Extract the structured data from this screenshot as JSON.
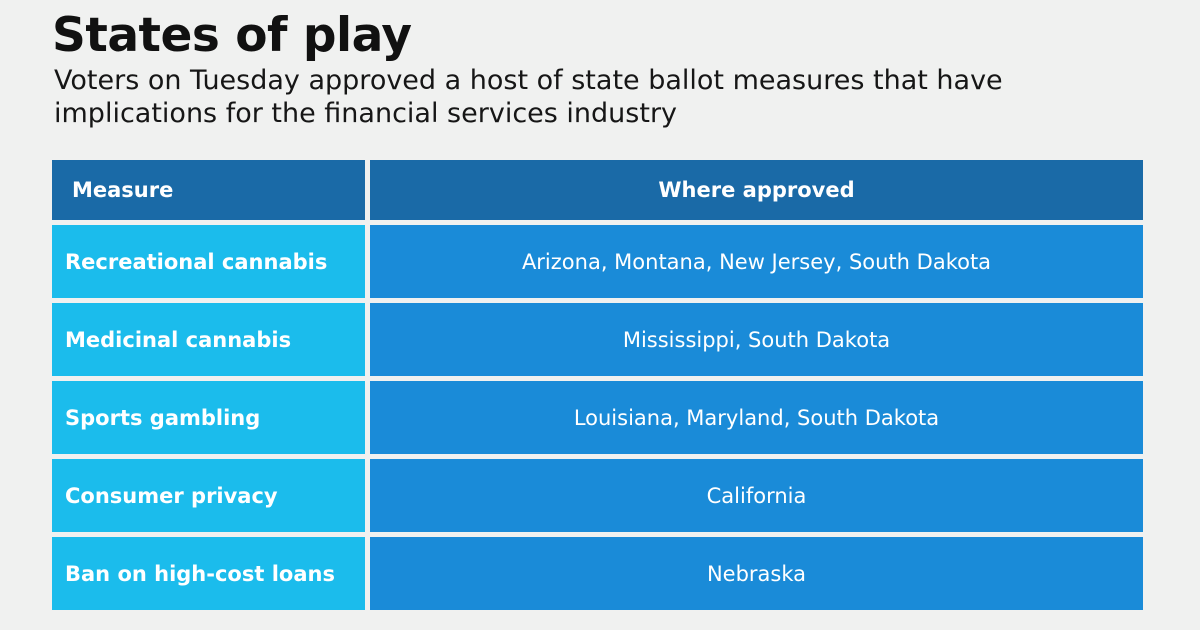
{
  "title": "States of play",
  "subtitle": "Voters on Tuesday approved a host of state ballot measures that have implications for the financial services industry",
  "colors": {
    "background": "#f0f1f0",
    "header": "#1a6aa7",
    "measure_column": "#1bbcec",
    "where_column": "#1a8bd8"
  },
  "chart_data": {
    "type": "table",
    "columns": [
      "Measure",
      "Where approved"
    ],
    "rows": [
      [
        "Recreational cannabis",
        "Arizona, Montana, New Jersey, South Dakota"
      ],
      [
        "Medicinal cannabis",
        "Mississippi, South Dakota"
      ],
      [
        "Sports gambling",
        "Louisiana, Maryland, South Dakota"
      ],
      [
        "Consumer privacy",
        "California"
      ],
      [
        "Ban on high-cost loans",
        "Nebraska"
      ]
    ]
  }
}
